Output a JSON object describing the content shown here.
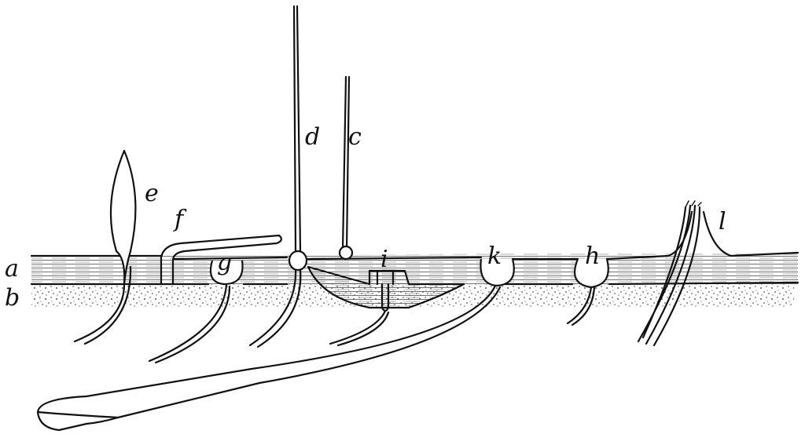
{
  "labels": {
    "a": "a",
    "b": "b",
    "c": "c",
    "d": "d",
    "e": "e",
    "f": "f",
    "g": "g",
    "h": "h",
    "i": "i",
    "k": "k",
    "l": "l"
  },
  "colors": {
    "ink": "#111111",
    "paper": "#ffffff"
  }
}
